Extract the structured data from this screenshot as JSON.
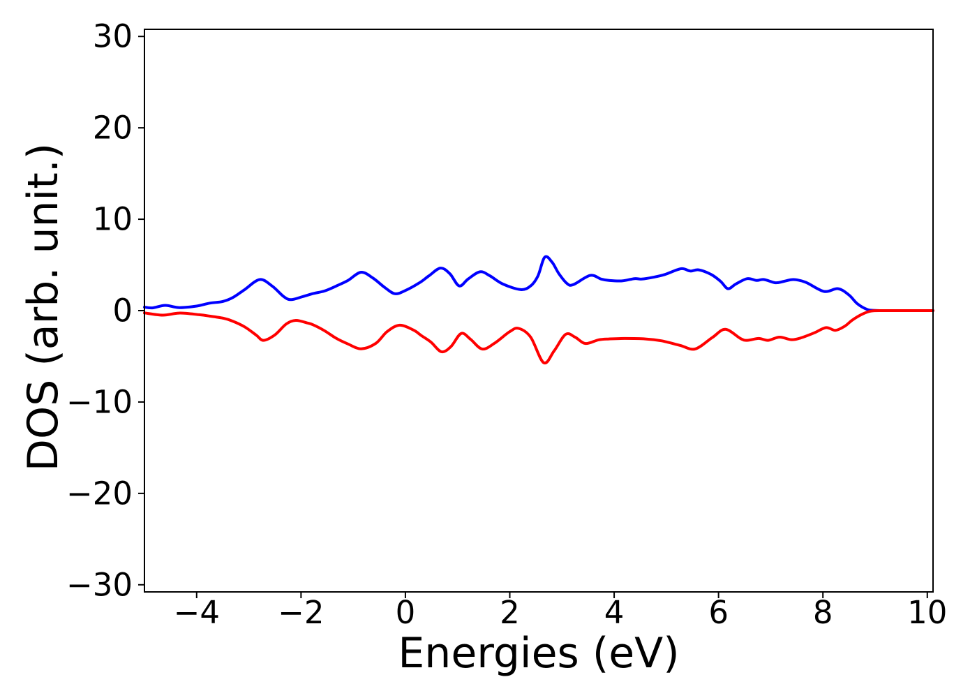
{
  "chart_data": {
    "type": "line",
    "title": "",
    "xlabel": "Energies (eV)",
    "ylabel": "DOS (arb. unit.)",
    "xlim": [
      -5,
      10.11
    ],
    "ylim": [
      -30.78,
      30.78
    ],
    "grid": false,
    "legend": "none",
    "background_color": "#ffffff",
    "frame_color": "#000000",
    "x_ticks": {
      "values": [
        -4,
        -2,
        0,
        2,
        4,
        6,
        8,
        10
      ],
      "labels": [
        "−4",
        "−2",
        "0",
        "2",
        "4",
        "6",
        "8",
        "10"
      ]
    },
    "y_ticks": {
      "values": [
        -30,
        -20,
        -10,
        0,
        10,
        20,
        30
      ],
      "labels": [
        "−30",
        "−20",
        "−10",
        "0",
        "10",
        "20",
        "30"
      ]
    },
    "series": [
      {
        "name": "blue-curve",
        "color": "#0000ff",
        "points": [
          [
            -5.0,
            0.38
          ],
          [
            -4.85,
            0.3
          ],
          [
            -4.6,
            0.57
          ],
          [
            -4.33,
            0.33
          ],
          [
            -4.0,
            0.5
          ],
          [
            -3.75,
            0.82
          ],
          [
            -3.5,
            1.0
          ],
          [
            -3.3,
            1.45
          ],
          [
            -3.08,
            2.3
          ],
          [
            -2.79,
            3.4
          ],
          [
            -2.55,
            2.67
          ],
          [
            -2.33,
            1.53
          ],
          [
            -2.19,
            1.2
          ],
          [
            -1.97,
            1.53
          ],
          [
            -1.77,
            1.86
          ],
          [
            -1.55,
            2.15
          ],
          [
            -1.32,
            2.7
          ],
          [
            -1.1,
            3.3
          ],
          [
            -0.85,
            4.2
          ],
          [
            -0.62,
            3.55
          ],
          [
            -0.4,
            2.55
          ],
          [
            -0.2,
            1.85
          ],
          [
            0.0,
            2.2
          ],
          [
            0.27,
            3.05
          ],
          [
            0.45,
            3.8
          ],
          [
            0.67,
            4.65
          ],
          [
            0.85,
            4.05
          ],
          [
            1.03,
            2.7
          ],
          [
            1.2,
            3.45
          ],
          [
            1.43,
            4.25
          ],
          [
            1.62,
            3.8
          ],
          [
            1.87,
            2.9
          ],
          [
            2.21,
            2.3
          ],
          [
            2.4,
            2.7
          ],
          [
            2.54,
            3.8
          ],
          [
            2.67,
            5.85
          ],
          [
            2.81,
            5.3
          ],
          [
            2.94,
            4.05
          ],
          [
            3.1,
            2.95
          ],
          [
            3.22,
            2.85
          ],
          [
            3.54,
            3.85
          ],
          [
            3.75,
            3.45
          ],
          [
            3.9,
            3.3
          ],
          [
            4.15,
            3.25
          ],
          [
            4.39,
            3.5
          ],
          [
            4.53,
            3.45
          ],
          [
            4.75,
            3.65
          ],
          [
            4.97,
            3.95
          ],
          [
            5.28,
            4.58
          ],
          [
            5.46,
            4.33
          ],
          [
            5.62,
            4.46
          ],
          [
            5.86,
            3.95
          ],
          [
            6.04,
            3.2
          ],
          [
            6.18,
            2.4
          ],
          [
            6.33,
            2.9
          ],
          [
            6.55,
            3.5
          ],
          [
            6.73,
            3.3
          ],
          [
            6.87,
            3.4
          ],
          [
            7.09,
            3.05
          ],
          [
            7.25,
            3.2
          ],
          [
            7.44,
            3.4
          ],
          [
            7.67,
            3.1
          ],
          [
            8.02,
            2.1
          ],
          [
            8.29,
            2.4
          ],
          [
            8.5,
            1.7
          ],
          [
            8.66,
            0.75
          ],
          [
            8.85,
            0.12
          ],
          [
            9.0,
            0.02
          ],
          [
            9.25,
            0.0
          ],
          [
            9.6,
            0.0
          ],
          [
            10.11,
            0.0
          ]
        ]
      },
      {
        "name": "red-curve",
        "color": "#ff0000",
        "points": [
          [
            -5.0,
            -0.25
          ],
          [
            -4.65,
            -0.5
          ],
          [
            -4.32,
            -0.27
          ],
          [
            -3.95,
            -0.45
          ],
          [
            -3.75,
            -0.6
          ],
          [
            -3.48,
            -0.85
          ],
          [
            -3.31,
            -1.15
          ],
          [
            -3.08,
            -1.78
          ],
          [
            -2.86,
            -2.67
          ],
          [
            -2.72,
            -3.25
          ],
          [
            -2.5,
            -2.65
          ],
          [
            -2.28,
            -1.45
          ],
          [
            -2.1,
            -1.07
          ],
          [
            -1.88,
            -1.35
          ],
          [
            -1.77,
            -1.55
          ],
          [
            -1.55,
            -2.2
          ],
          [
            -1.32,
            -3.05
          ],
          [
            -1.1,
            -3.65
          ],
          [
            -0.85,
            -4.18
          ],
          [
            -0.57,
            -3.6
          ],
          [
            -0.35,
            -2.3
          ],
          [
            -0.11,
            -1.6
          ],
          [
            0.16,
            -2.15
          ],
          [
            0.31,
            -2.75
          ],
          [
            0.49,
            -3.45
          ],
          [
            0.69,
            -4.5
          ],
          [
            0.87,
            -3.95
          ],
          [
            1.07,
            -2.5
          ],
          [
            1.25,
            -3.15
          ],
          [
            1.47,
            -4.2
          ],
          [
            1.7,
            -3.6
          ],
          [
            2.0,
            -2.3
          ],
          [
            2.17,
            -1.95
          ],
          [
            2.4,
            -2.9
          ],
          [
            2.65,
            -5.7
          ],
          [
            2.85,
            -4.4
          ],
          [
            3.07,
            -2.6
          ],
          [
            3.25,
            -2.9
          ],
          [
            3.45,
            -3.6
          ],
          [
            3.7,
            -3.2
          ],
          [
            3.9,
            -3.1
          ],
          [
            4.2,
            -3.05
          ],
          [
            4.6,
            -3.1
          ],
          [
            4.9,
            -3.3
          ],
          [
            5.26,
            -3.8
          ],
          [
            5.55,
            -4.2
          ],
          [
            5.88,
            -2.95
          ],
          [
            6.13,
            -2.05
          ],
          [
            6.42,
            -3.05
          ],
          [
            6.55,
            -3.25
          ],
          [
            6.77,
            -3.05
          ],
          [
            6.95,
            -3.25
          ],
          [
            7.17,
            -2.9
          ],
          [
            7.39,
            -3.18
          ],
          [
            7.57,
            -3.0
          ],
          [
            7.84,
            -2.42
          ],
          [
            8.06,
            -1.86
          ],
          [
            8.24,
            -2.16
          ],
          [
            8.42,
            -1.7
          ],
          [
            8.56,
            -1.05
          ],
          [
            8.75,
            -0.4
          ],
          [
            8.92,
            -0.05
          ],
          [
            9.15,
            0.0
          ],
          [
            9.6,
            0.0
          ],
          [
            10.11,
            0.0
          ]
        ]
      }
    ]
  }
}
